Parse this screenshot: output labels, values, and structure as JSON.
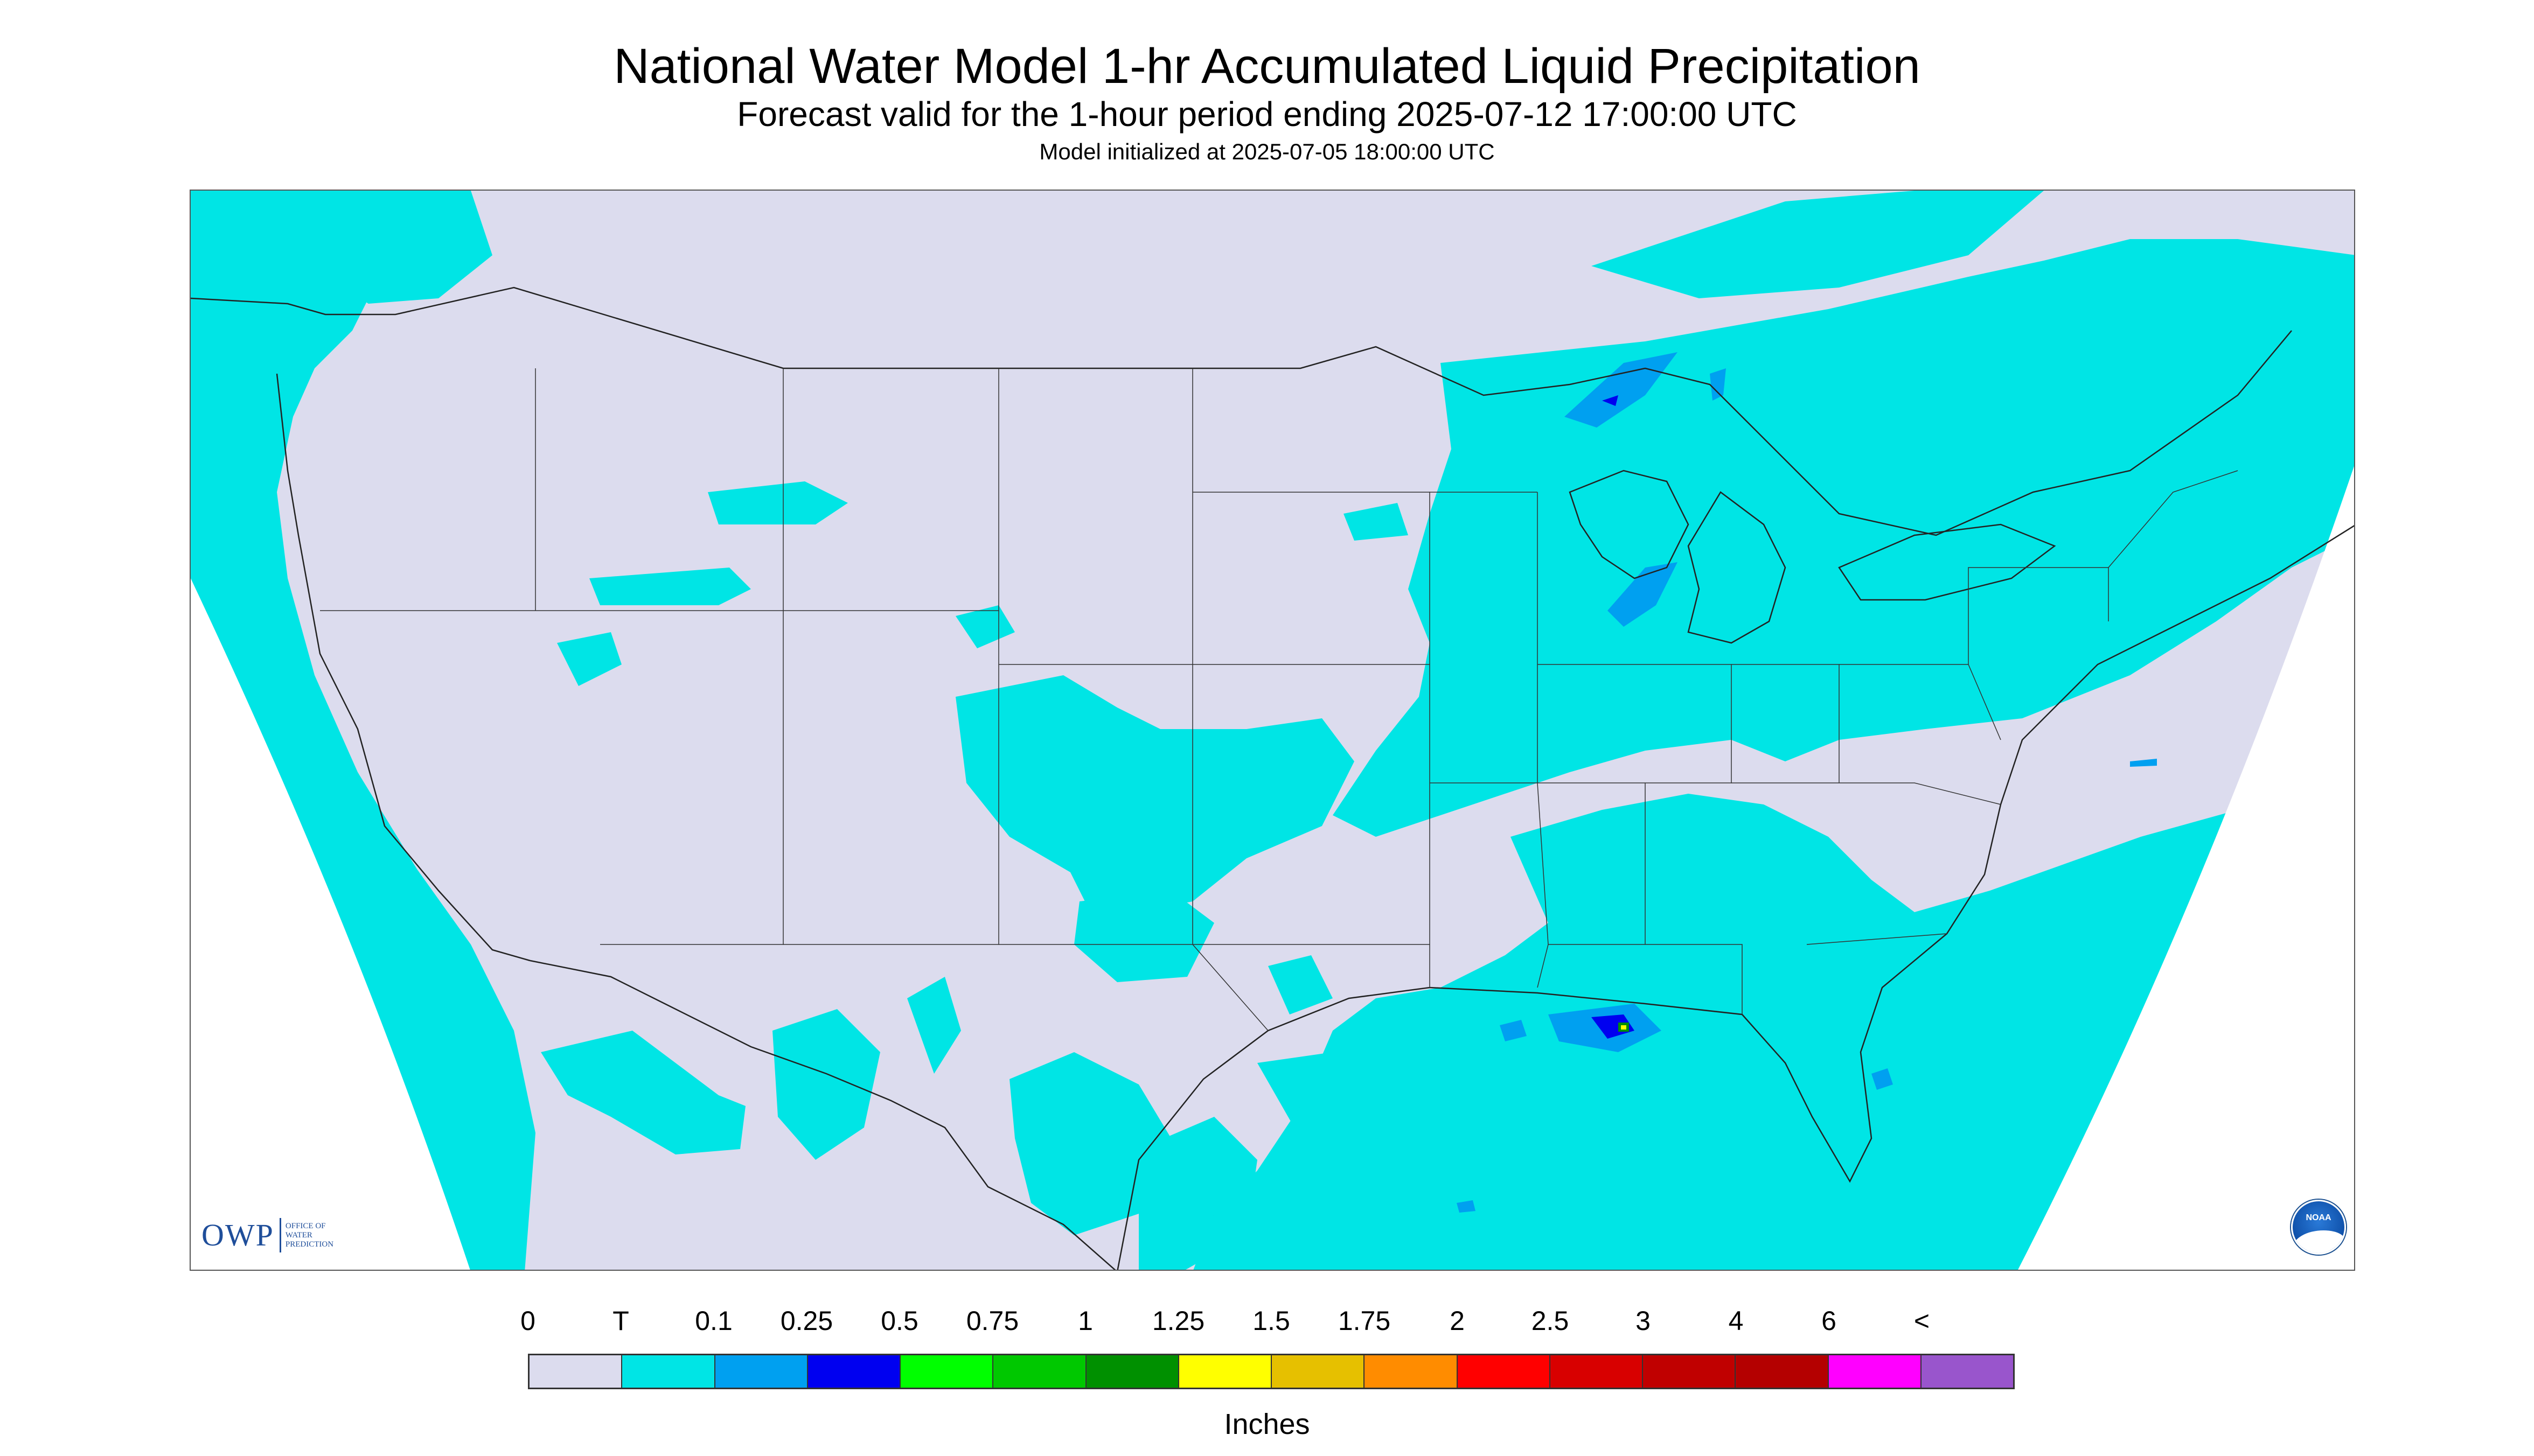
{
  "title": "National Water Model 1-hr Accumulated Liquid Precipitation",
  "subtitle": "Forecast valid for the 1-hour period ending 2025-07-12 17:00:00 UTC",
  "init_text": "Model initialized at 2025-07-05 18:00:00 UTC",
  "logo": {
    "owp_mark": "OWP",
    "owp_lines": [
      "Office of",
      "Water",
      "Prediction"
    ],
    "noaa_text": "NOAA"
  },
  "colors": {
    "no_precip": "#dcdcee",
    "trace": "#00e5e5",
    "outside": "#ffffff"
  },
  "legend": {
    "labels": [
      "0",
      "T",
      "0.1",
      "0.25",
      "0.5",
      "0.75",
      "1",
      "1.25",
      "1.5",
      "1.75",
      "2",
      "2.5",
      "3",
      "4",
      "6",
      "<"
    ],
    "colors": [
      "#dcdcee",
      "#00e5e5",
      "#00a0f0",
      "#0000f0",
      "#00ff00",
      "#00c800",
      "#009000",
      "#ffff00",
      "#e6c000",
      "#ff8c00",
      "#ff0000",
      "#d80000",
      "#c00000",
      "#b40000",
      "#ff00ff",
      "#9955cc"
    ],
    "units": "Inches"
  }
}
